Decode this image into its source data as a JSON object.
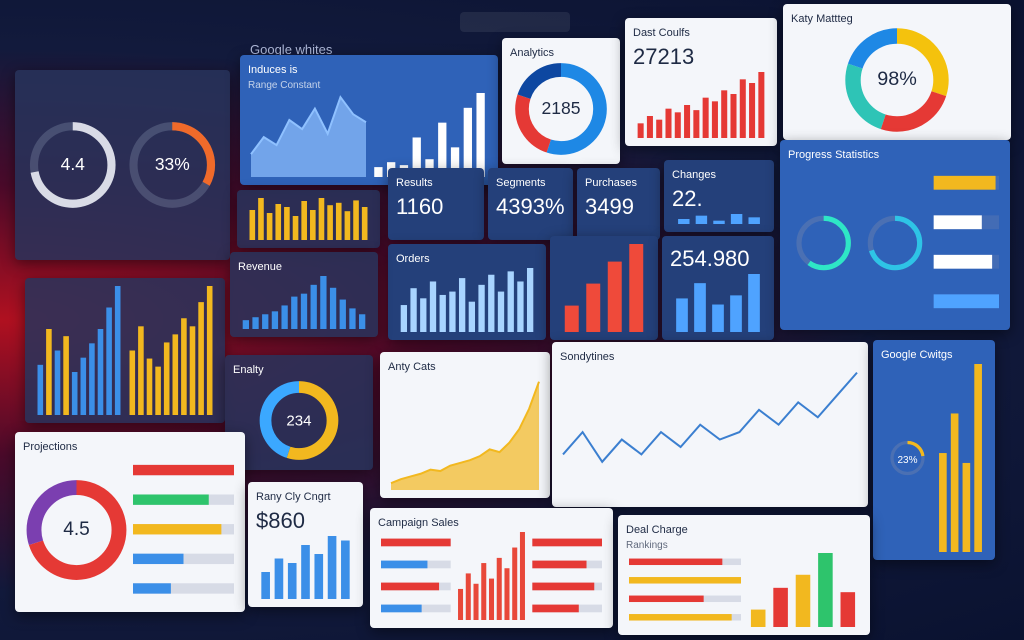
{
  "header": {
    "title": "Google whites"
  },
  "panels": [
    {
      "theme": "dark",
      "charts": [
        {
          "type": "ring",
          "value": 72,
          "label": "4.4",
          "color": "#d9dbe6"
        },
        {
          "type": "ring",
          "value": 33,
          "label": "33%",
          "color": "#f06a2a"
        }
      ]
    },
    {
      "theme": "blue",
      "title": "Induces is",
      "subtitle": "Range Constant",
      "charts": [
        {
          "type": "area",
          "color": "#8fc1ff",
          "values": [
            20,
            35,
            28,
            50,
            42,
            60,
            38,
            70,
            55,
            48
          ]
        },
        {
          "type": "bar",
          "color": "#ffffff",
          "values": [
            10,
            15,
            12,
            40,
            18,
            55,
            30,
            70,
            85
          ]
        }
      ]
    },
    {
      "theme": "light",
      "title": "Analytics",
      "charts": [
        {
          "type": "donut",
          "label": "2185",
          "values": [
            55,
            25,
            20
          ],
          "colors": [
            "#1e88e5",
            "#e53935",
            "#0d47a1"
          ]
        }
      ]
    },
    {
      "theme": "light",
      "title": "Dast Coulfs",
      "value": "27213",
      "charts": [
        {
          "type": "bar",
          "color": "#e53935",
          "values": [
            20,
            30,
            25,
            40,
            35,
            45,
            38,
            55,
            50,
            65,
            60,
            80,
            75,
            90
          ]
        }
      ]
    },
    {
      "theme": "light",
      "title": "Katy Mattteg",
      "charts": [
        {
          "type": "donut",
          "label": "98%",
          "values": [
            30,
            25,
            25,
            20
          ],
          "colors": [
            "#f4c20d",
            "#e53935",
            "#2ec4b6",
            "#1e88e5"
          ]
        }
      ]
    },
    {
      "theme": "dark",
      "charts": [
        {
          "type": "bar",
          "color": "#f2b81f",
          "values": [
            50,
            70,
            45,
            60,
            55,
            40,
            65,
            50,
            70,
            58,
            62,
            48,
            66,
            55
          ]
        }
      ]
    },
    {
      "theme": "navy",
      "title": "Results",
      "value": "1160"
    },
    {
      "theme": "navy",
      "title": "Segments",
      "value": "4393%"
    },
    {
      "theme": "navy",
      "title": "Purchases",
      "value": "3499"
    },
    {
      "theme": "navy",
      "title": "Changes",
      "value": "22.",
      "charts": [
        {
          "type": "bar",
          "color": "#4fa3ff",
          "values": [
            30,
            50,
            20,
            60,
            40
          ]
        }
      ]
    },
    {
      "theme": "navy",
      "title": "Orders",
      "charts": [
        {
          "type": "bar",
          "color": "#a8d4ff",
          "values": [
            40,
            65,
            50,
            75,
            55,
            60,
            80,
            45,
            70,
            85,
            60,
            90,
            75,
            95
          ]
        }
      ]
    },
    {
      "theme": "navy",
      "charts": [
        {
          "type": "bar",
          "color": "#ef4a3a",
          "values": [
            30,
            55,
            80,
            100
          ]
        }
      ]
    },
    {
      "theme": "navy",
      "value": "254.980",
      "charts": [
        {
          "type": "bar",
          "color": "#4fa3ff",
          "values": [
            55,
            80,
            45,
            60,
            95
          ]
        }
      ]
    },
    {
      "theme": "blue",
      "title": "Progress Statistics",
      "charts": [
        {
          "type": "ring",
          "value": 60,
          "label": "",
          "color": "#2ee6c6"
        },
        {
          "type": "ring",
          "value": 70,
          "label": "",
          "color": "#2ec4e6"
        },
        {
          "type": "hbar",
          "values": [
            90,
            70,
            85,
            95
          ],
          "colors": [
            "#f2b81f",
            "#ffffff",
            "#ffffff",
            "#4fa3ff"
          ]
        }
      ]
    },
    {
      "theme": "dark",
      "charts": [
        {
          "type": "bar",
          "colors": [
            "#3b8fe8",
            "#f2b81f",
            "#3b8fe8",
            "#f2b81f",
            "#3b8fe8",
            "#3b8fe8",
            "#3b8fe8",
            "#3b8fe8",
            "#3b8fe8",
            "#3b8fe8"
          ],
          "values": [
            35,
            60,
            45,
            55,
            30,
            40,
            50,
            60,
            75,
            90
          ]
        },
        {
          "type": "bar",
          "color": "#f2b81f",
          "values": [
            40,
            55,
            35,
            30,
            45,
            50,
            60,
            55,
            70,
            80
          ]
        }
      ]
    },
    {
      "theme": "dark",
      "title": "Revenue",
      "charts": [
        {
          "type": "bar",
          "color": "#3b8fe8",
          "values": [
            15,
            20,
            25,
            30,
            40,
            55,
            60,
            75,
            90,
            70,
            50,
            35,
            25
          ]
        }
      ]
    },
    {
      "theme": "dark",
      "title": "Enalty",
      "charts": [
        {
          "type": "donut",
          "label": "234",
          "values": [
            55,
            45
          ],
          "colors": [
            "#f2b81f",
            "#3ba8ff"
          ]
        }
      ]
    },
    {
      "theme": "light",
      "title": "Anty Cats",
      "charts": [
        {
          "type": "area",
          "color": "#f2b81f",
          "values": [
            5,
            8,
            10,
            12,
            15,
            14,
            18,
            20,
            22,
            25,
            30,
            28,
            35,
            45,
            60,
            80
          ]
        }
      ]
    },
    {
      "theme": "light",
      "title": "Sondytines",
      "charts": [
        {
          "type": "line",
          "color": "#3b7fd0",
          "values": [
            30,
            45,
            25,
            40,
            30,
            45,
            35,
            50,
            40,
            45,
            60,
            50,
            65,
            55,
            70,
            85
          ]
        }
      ]
    },
    {
      "theme": "blue",
      "title": "Google Cwitgs",
      "charts": [
        {
          "type": "ring",
          "value": 23,
          "label": "23%",
          "color": "#f2b81f"
        },
        {
          "type": "bar",
          "color": "#f2b81f",
          "values": [
            50,
            70,
            45,
            95
          ]
        }
      ]
    },
    {
      "theme": "light",
      "title": "Projections",
      "charts": [
        {
          "type": "donut",
          "label": "4.5",
          "values": [
            70,
            30
          ],
          "colors": [
            "#e53935",
            "#7b3fb0"
          ]
        },
        {
          "type": "hbar",
          "values": [
            80,
            60,
            70,
            40,
            30
          ],
          "colors": [
            "#e53935",
            "#2ec46c",
            "#f2b81f",
            "#3b8fe8",
            "#3b8fe8"
          ]
        }
      ]
    },
    {
      "theme": "light",
      "title": "Rany Cly Cngrt",
      "value": "$860",
      "charts": [
        {
          "type": "bar",
          "color": "#3b8fe8",
          "values": [
            30,
            45,
            40,
            60,
            50,
            70,
            65
          ]
        }
      ]
    },
    {
      "theme": "light",
      "title": "Campaign Sales",
      "charts": [
        {
          "type": "hbar",
          "values": [
            60,
            40,
            50,
            35
          ],
          "colors": [
            "#e53935",
            "#3b8fe8",
            "#e53935",
            "#3b8fe8"
          ]
        },
        {
          "type": "bar",
          "color": "#e8483a",
          "values": [
            30,
            45,
            35,
            55,
            40,
            60,
            50,
            70,
            85
          ]
        },
        {
          "type": "hbar",
          "values": [
            90,
            70,
            80,
            60
          ],
          "colors": [
            "#e53935",
            "#e53935",
            "#e53935",
            "#e53935"
          ]
        }
      ]
    },
    {
      "theme": "light",
      "title": "Deal Charge",
      "subtitle": "Rankings",
      "charts": [
        {
          "type": "hbar",
          "values": [
            50,
            60,
            40,
            55
          ],
          "colors": [
            "#e53935",
            "#f2b81f",
            "#e53935",
            "#f2b81f"
          ]
        },
        {
          "type": "bar",
          "colors": [
            "#f2b81f",
            "#e53935",
            "#f2b81f",
            "#2ec46c",
            "#e53935"
          ],
          "values": [
            20,
            45,
            60,
            85,
            40
          ]
        }
      ]
    }
  ]
}
